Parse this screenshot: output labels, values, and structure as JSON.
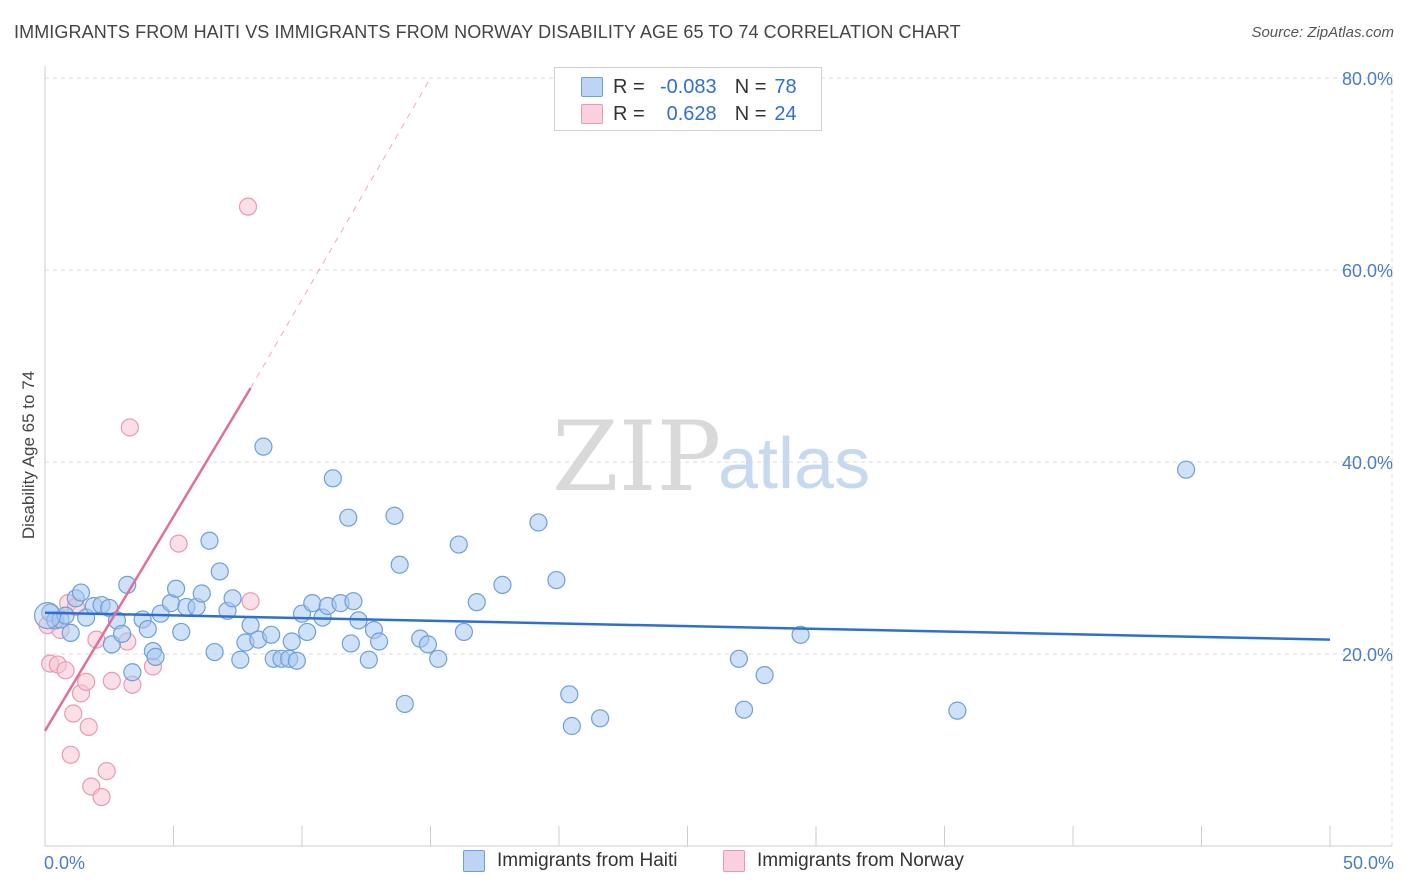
{
  "title": "IMMIGRANTS FROM HAITI VS IMMIGRANTS FROM NORWAY DISABILITY AGE 65 TO 74 CORRELATION CHART",
  "source": "Source: ZipAtlas.com",
  "watermark": {
    "zip": "ZIP",
    "atlas": "atlas"
  },
  "colors": {
    "haiti_fill": "#a8c8f0",
    "haiti_stroke": "#6f9fd8",
    "haiti_line": "#2f6fcf",
    "norway_fill": "#f7c5d4",
    "norway_stroke": "#e89ab2",
    "norway_line": "#e0709a",
    "grid": "#d9d9d9",
    "axis_text": "#4a7cc9"
  },
  "legend": {
    "r_label": "R =",
    "n_label": "N =",
    "haiti": {
      "r": "-0.083",
      "n": "78"
    },
    "norway": {
      "r": "0.628",
      "n": "24"
    }
  },
  "bottom_legend": {
    "haiti": "Immigrants from Haiti",
    "norway": "Immigrants from Norway"
  },
  "chart_data": {
    "type": "scatter",
    "title": "IMMIGRANTS FROM HAITI VS IMMIGRANTS FROM NORWAY DISABILITY AGE 65 TO 74 CORRELATION CHART",
    "xlabel": "",
    "ylabel": "Disability Age 65 to 74",
    "xlim": [
      0,
      50
    ],
    "ylim": [
      0,
      80
    ],
    "x_tick_labels": [
      "0.0%",
      "50.0%"
    ],
    "y_ticks": [
      20,
      40,
      60,
      80
    ],
    "y_tick_labels": [
      "20.0%",
      "40.0%",
      "60.0%",
      "80.0%"
    ],
    "grid": true,
    "legend_position": "top-center",
    "series": [
      {
        "name": "Immigrants from Haiti",
        "r": -0.083,
        "n": 78,
        "trend": {
          "x": [
            0,
            50
          ],
          "y": [
            24.3,
            21.5
          ]
        },
        "points": [
          [
            0.2,
            24.3
          ],
          [
            0.4,
            23.5
          ],
          [
            0.6,
            23.6
          ],
          [
            0.8,
            24.0
          ],
          [
            1.0,
            22.2
          ],
          [
            1.2,
            25.8
          ],
          [
            1.4,
            26.4
          ],
          [
            1.6,
            23.8
          ],
          [
            1.9,
            25.0
          ],
          [
            2.2,
            25.1
          ],
          [
            2.5,
            24.8
          ],
          [
            2.6,
            21.0
          ],
          [
            2.8,
            23.5
          ],
          [
            3.0,
            22.1
          ],
          [
            3.2,
            27.2
          ],
          [
            3.4,
            18.1
          ],
          [
            3.8,
            23.6
          ],
          [
            4.0,
            22.6
          ],
          [
            4.2,
            20.3
          ],
          [
            4.3,
            19.7
          ],
          [
            4.5,
            24.2
          ],
          [
            4.9,
            25.3
          ],
          [
            5.1,
            26.8
          ],
          [
            5.3,
            22.3
          ],
          [
            5.5,
            24.9
          ],
          [
            5.9,
            24.9
          ],
          [
            6.1,
            26.3
          ],
          [
            6.4,
            31.8
          ],
          [
            6.6,
            20.2
          ],
          [
            6.8,
            28.6
          ],
          [
            7.1,
            24.5
          ],
          [
            7.3,
            25.8
          ],
          [
            7.6,
            19.4
          ],
          [
            7.8,
            21.2
          ],
          [
            8.0,
            23.0
          ],
          [
            8.3,
            21.5
          ],
          [
            8.5,
            41.6
          ],
          [
            8.8,
            22.0
          ],
          [
            8.9,
            19.5
          ],
          [
            9.2,
            19.5
          ],
          [
            9.5,
            19.5
          ],
          [
            9.6,
            21.3
          ],
          [
            9.8,
            19.3
          ],
          [
            10.0,
            24.2
          ],
          [
            10.2,
            22.3
          ],
          [
            10.4,
            25.3
          ],
          [
            10.8,
            23.8
          ],
          [
            11.0,
            25.0
          ],
          [
            11.2,
            38.3
          ],
          [
            11.5,
            25.3
          ],
          [
            11.8,
            34.2
          ],
          [
            11.9,
            21.1
          ],
          [
            12.0,
            25.5
          ],
          [
            12.2,
            23.5
          ],
          [
            12.6,
            19.4
          ],
          [
            12.8,
            22.5
          ],
          [
            13.0,
            21.3
          ],
          [
            13.6,
            34.4
          ],
          [
            13.8,
            29.3
          ],
          [
            14.0,
            14.8
          ],
          [
            14.6,
            21.6
          ],
          [
            14.9,
            21.0
          ],
          [
            15.3,
            19.5
          ],
          [
            16.1,
            31.4
          ],
          [
            16.3,
            22.3
          ],
          [
            16.8,
            25.4
          ],
          [
            17.8,
            27.2
          ],
          [
            19.2,
            33.7
          ],
          [
            19.9,
            27.7
          ],
          [
            20.4,
            15.8
          ],
          [
            20.5,
            12.5
          ],
          [
            21.6,
            13.3
          ],
          [
            27.0,
            19.5
          ],
          [
            27.2,
            14.2
          ],
          [
            28.0,
            17.8
          ],
          [
            29.4,
            22.0
          ],
          [
            35.5,
            14.1
          ],
          [
            44.4,
            39.2
          ]
        ]
      },
      {
        "name": "Immigrants from Norway",
        "r": 0.628,
        "n": 24,
        "trend": {
          "x": [
            0,
            8.0
          ],
          "y": [
            12.0,
            47.7
          ]
        },
        "trend_extension": {
          "x": [
            8.0,
            15.0
          ],
          "y": [
            47.7,
            80.0
          ]
        },
        "points": [
          [
            0.1,
            23.0
          ],
          [
            0.2,
            19.0
          ],
          [
            0.5,
            18.9
          ],
          [
            0.6,
            22.5
          ],
          [
            0.8,
            18.3
          ],
          [
            0.9,
            25.3
          ],
          [
            1.0,
            9.5
          ],
          [
            1.1,
            13.8
          ],
          [
            1.2,
            24.9
          ],
          [
            1.4,
            15.9
          ],
          [
            1.6,
            17.1
          ],
          [
            1.7,
            12.4
          ],
          [
            1.8,
            6.2
          ],
          [
            2.0,
            21.5
          ],
          [
            2.2,
            5.1
          ],
          [
            2.4,
            7.8
          ],
          [
            2.6,
            17.2
          ],
          [
            3.2,
            21.3
          ],
          [
            3.3,
            43.6
          ],
          [
            3.4,
            16.8
          ],
          [
            4.2,
            18.7
          ],
          [
            5.2,
            31.5
          ],
          [
            7.9,
            66.6
          ],
          [
            8.0,
            25.5
          ]
        ]
      }
    ]
  }
}
